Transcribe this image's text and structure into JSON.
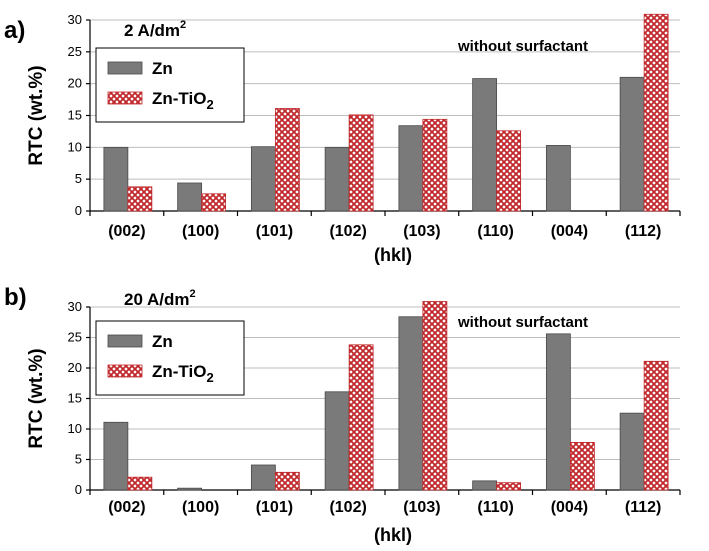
{
  "colors": {
    "zn": "#7a7a7a",
    "zn_tio2": "#c0282c",
    "zn_tio2_bg": "#ffffff"
  },
  "chart_data": [
    {
      "type": "bar",
      "panel": "a)",
      "current_density": "2 A/dm",
      "current_density_sup": "2",
      "annotation": "without surfactant",
      "xlabel": "(hkl)",
      "ylabel": "RTC (wt.%)",
      "categories": [
        "(002)",
        "(100)",
        "(101)",
        "(102)",
        "(103)",
        "(110)",
        "(004)",
        "(112)"
      ],
      "ylim": [
        0,
        30
      ],
      "yticks": [
        "0",
        "5",
        "10",
        "15",
        "20",
        "25",
        "30"
      ],
      "grid": true,
      "legend_position": "top-left",
      "series": [
        {
          "name": "Zn",
          "name_sub": "",
          "values": [
            10.0,
            4.4,
            10.1,
            10.0,
            13.4,
            20.8,
            10.3,
            21.0
          ]
        },
        {
          "name": "Zn-TiO",
          "name_sub": "2",
          "values": [
            3.8,
            2.7,
            16.1,
            15.1,
            14.4,
            12.6,
            0.0,
            30.9
          ]
        }
      ]
    },
    {
      "type": "bar",
      "panel": "b)",
      "current_density": "20 A/dm",
      "current_density_sup": "2",
      "annotation": "without surfactant",
      "xlabel": "(hkl)",
      "ylabel": "RTC (wt.%)",
      "categories": [
        "(002)",
        "(100)",
        "(101)",
        "(102)",
        "(103)",
        "(110)",
        "(004)",
        "(112)"
      ],
      "ylim": [
        0,
        30
      ],
      "yticks": [
        "0",
        "5",
        "10",
        "15",
        "20",
        "25",
        "30"
      ],
      "grid": true,
      "legend_position": "top-left",
      "series": [
        {
          "name": "Zn",
          "name_sub": "",
          "values": [
            11.1,
            0.3,
            4.1,
            16.1,
            28.4,
            1.5,
            25.6,
            12.6
          ]
        },
        {
          "name": "Zn-TiO",
          "name_sub": "2",
          "values": [
            2.1,
            0.0,
            2.9,
            23.8,
            30.9,
            1.2,
            7.8,
            21.1
          ]
        }
      ]
    }
  ]
}
